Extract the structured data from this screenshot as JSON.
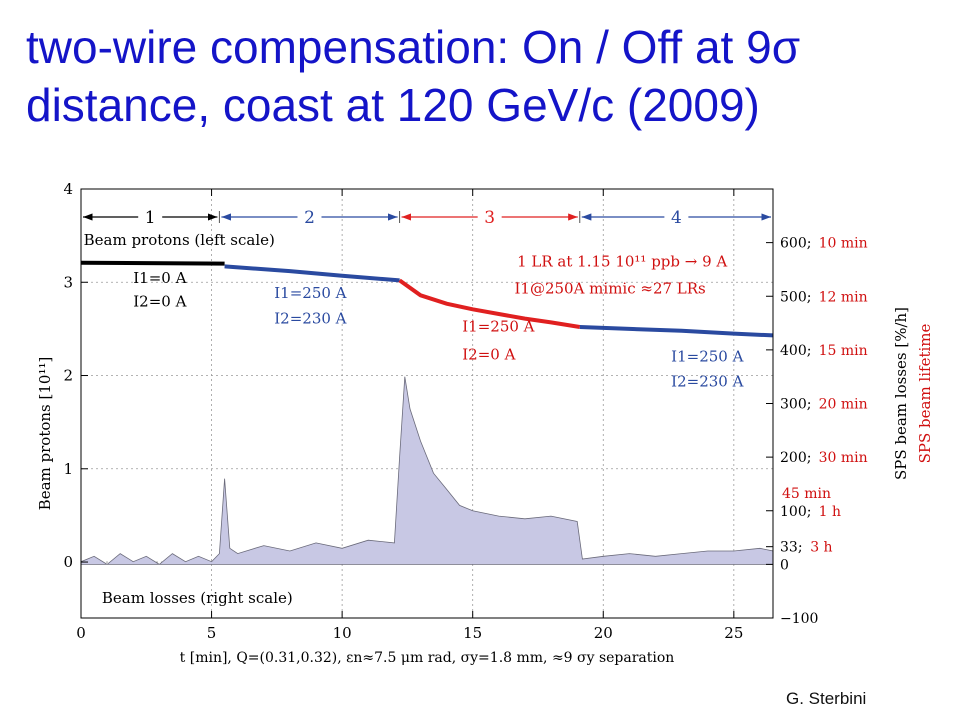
{
  "slide": {
    "title_line1": "two-wire compensation: On / Off at 9σ",
    "title_line2": "distance, coast at 120 GeV/c (2009)",
    "author": "G. Sterbini",
    "title_color": "#1414c8"
  },
  "chart_data": {
    "type": "line",
    "xlabel": "t [min], Q=(0.31,0.32), εn≈7.5 μm rad, σy=1.8 mm, ≈9 σy separation",
    "ylabel_left": "Beam protons [10¹¹]",
    "ylabel_right": "SPS beam losses [%/h]",
    "ylabel_right2": "SPS beam lifetime",
    "xlim": [
      0,
      26.5
    ],
    "ylim_left": [
      -0.6,
      4
    ],
    "ylim_right": [
      -100,
      700
    ],
    "x_ticks": [
      0,
      5,
      10,
      15,
      20,
      25
    ],
    "y_ticks_left": [
      0,
      1,
      2,
      3,
      4
    ],
    "y_ticks_right": [
      {
        "value": 600,
        "label": "600;",
        "lifetime": "10 min"
      },
      {
        "value": 500,
        "label": "500;",
        "lifetime": "12 min"
      },
      {
        "value": 400,
        "label": "400;",
        "lifetime": "15 min"
      },
      {
        "value": 300,
        "label": "300;",
        "lifetime": "20 min"
      },
      {
        "value": 200,
        "label": "200;",
        "lifetime": "30 min"
      },
      {
        "value": 133,
        "label": "",
        "lifetime": "45 min"
      },
      {
        "value": 100,
        "label": "100;",
        "lifetime": "1 h"
      },
      {
        "value": 33,
        "label": "33;",
        "lifetime": "3 h"
      },
      {
        "value": 0,
        "label": "0",
        "lifetime": ""
      },
      {
        "value": -100,
        "label": "−100",
        "lifetime": ""
      }
    ],
    "colors": {
      "phase1": "#000000",
      "phase2": "#2a4aa0",
      "phase3": "#e02020",
      "losses_fill": "#c8c8e4",
      "losses_line": "#6a6a7a",
      "label_blue": "#2a4aa0",
      "label_red": "#d01010"
    },
    "phases": [
      {
        "label": "1",
        "x_start": 0,
        "x_end": 5.3
      },
      {
        "label": "2",
        "x_start": 5.3,
        "x_end": 12.2
      },
      {
        "label": "3",
        "x_start": 12.2,
        "x_end": 19.1
      },
      {
        "label": "4",
        "x_start": 19.1,
        "x_end": 26.5
      }
    ],
    "series": [
      {
        "name": "Beam protons (left scale)",
        "segments": [
          {
            "color": "#000000",
            "points": [
              [
                0,
                3.21
              ],
              [
                5.5,
                3.2
              ]
            ]
          },
          {
            "color": "#2a4aa0",
            "points": [
              [
                5.5,
                3.17
              ],
              [
                8,
                3.12
              ],
              [
                10,
                3.07
              ],
              [
                12.2,
                3.02
              ]
            ]
          },
          {
            "color": "#e02020",
            "points": [
              [
                12.2,
                3.02
              ],
              [
                13,
                2.86
              ],
              [
                14,
                2.77
              ],
              [
                15,
                2.71
              ],
              [
                16,
                2.66
              ],
              [
                17,
                2.61
              ],
              [
                18,
                2.57
              ],
              [
                19.1,
                2.52
              ]
            ]
          },
          {
            "color": "#2a4aa0",
            "points": [
              [
                19.1,
                2.52
              ],
              [
                21,
                2.5
              ],
              [
                23,
                2.48
              ],
              [
                25,
                2.45
              ],
              [
                26.5,
                2.43
              ]
            ]
          }
        ]
      },
      {
        "name": "Beam losses (right scale)",
        "points": [
          [
            0,
            5
          ],
          [
            0.5,
            15
          ],
          [
            1,
            0
          ],
          [
            1.5,
            20
          ],
          [
            2,
            5
          ],
          [
            2.5,
            15
          ],
          [
            3,
            0
          ],
          [
            3.5,
            20
          ],
          [
            4,
            5
          ],
          [
            4.5,
            15
          ],
          [
            5,
            5
          ],
          [
            5.3,
            20
          ],
          [
            5.5,
            160
          ],
          [
            5.7,
            30
          ],
          [
            6,
            20
          ],
          [
            7,
            35
          ],
          [
            8,
            25
          ],
          [
            9,
            40
          ],
          [
            10,
            30
          ],
          [
            11,
            45
          ],
          [
            12,
            40
          ],
          [
            12.2,
            200
          ],
          [
            12.4,
            350
          ],
          [
            12.6,
            290
          ],
          [
            13,
            230
          ],
          [
            13.5,
            170
          ],
          [
            14,
            140
          ],
          [
            14.5,
            110
          ],
          [
            15,
            100
          ],
          [
            16,
            90
          ],
          [
            17,
            85
          ],
          [
            18,
            90
          ],
          [
            19,
            80
          ],
          [
            19.2,
            10
          ],
          [
            20,
            15
          ],
          [
            21,
            20
          ],
          [
            22,
            15
          ],
          [
            23,
            20
          ],
          [
            24,
            25
          ],
          [
            25,
            25
          ],
          [
            26,
            30
          ],
          [
            26.5,
            25
          ]
        ]
      }
    ],
    "annotations": [
      {
        "text": "Beam protons (left scale)",
        "x": 0.1,
        "y": 3.4,
        "color": "#000000"
      },
      {
        "text": "I1=0 A",
        "x": 2.0,
        "y": 2.99,
        "color": "#000000"
      },
      {
        "text": "I2=0 A",
        "x": 2.0,
        "y": 2.74,
        "color": "#000000"
      },
      {
        "text": "I1=250 A",
        "x": 7.4,
        "y": 2.83,
        "color": "#2a4aa0"
      },
      {
        "text": "I2=230 A",
        "x": 7.4,
        "y": 2.56,
        "color": "#2a4aa0"
      },
      {
        "text": "1 LR at 1.15 10¹¹ ppb → 9 A",
        "x": 16.7,
        "y": 3.17,
        "color": "#d01010"
      },
      {
        "text": "I1@250A mimic ≈27 LRs",
        "x": 16.6,
        "y": 2.88,
        "color": "#d01010"
      },
      {
        "text": "I1=250 A",
        "x": 14.6,
        "y": 2.47,
        "color": "#d01010"
      },
      {
        "text": "I2=0 A",
        "x": 14.6,
        "y": 2.17,
        "color": "#d01010"
      },
      {
        "text": "I1=250 A",
        "x": 22.6,
        "y": 2.15,
        "color": "#2a4aa0"
      },
      {
        "text": "I2=230 A",
        "x": 22.6,
        "y": 1.88,
        "color": "#2a4aa0"
      },
      {
        "text": "Beam losses (right scale)",
        "x": 0.8,
        "y": -0.44,
        "color": "#000000"
      }
    ],
    "grid": true
  }
}
